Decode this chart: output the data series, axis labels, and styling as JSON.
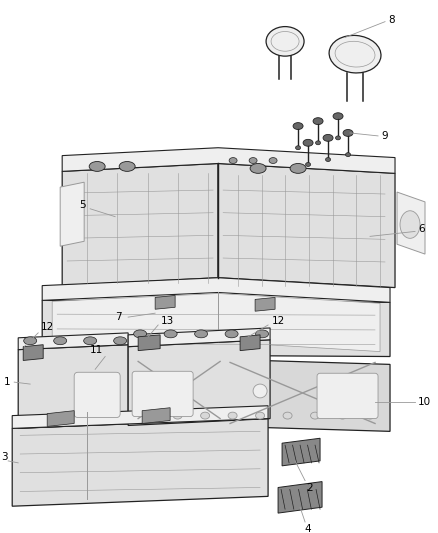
{
  "bg_color": "#ffffff",
  "lc": "#222222",
  "gray1": "#bbbbbb",
  "gray2": "#999999",
  "gray3": "#666666",
  "gray4": "#444444",
  "fill_seat": "#e0e0e0",
  "fill_light": "#efefef",
  "fill_frame": "#d8d8d8",
  "fill_dark": "#888888"
}
